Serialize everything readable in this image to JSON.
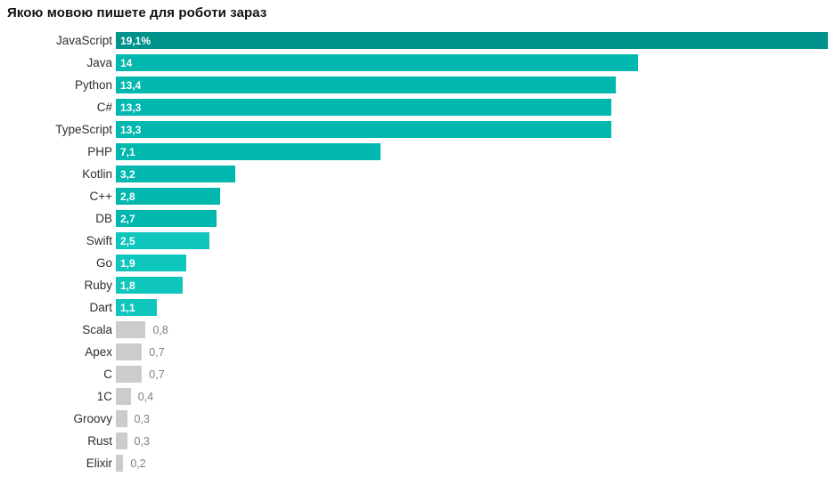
{
  "title": "Якою мовою пишете для роботи зараз",
  "chart_data": {
    "type": "bar",
    "orientation": "horizontal",
    "title": "Якою мовою пишете для роботи зараз",
    "xlabel": "",
    "ylabel": "",
    "xlim": [
      0,
      19.1
    ],
    "grid": false,
    "legend": "none",
    "categories": [
      "JavaScript",
      "Java",
      "Python",
      "C#",
      "TypeScript",
      "PHP",
      "Kotlin",
      "C++",
      "DB",
      "Swift",
      "Go",
      "Ruby",
      "Dart",
      "Scala",
      "Apex",
      "C",
      "1C",
      "Groovy",
      "Rust",
      "Elixir"
    ],
    "values": [
      19.1,
      14,
      13.4,
      13.3,
      13.3,
      7.1,
      3.2,
      2.8,
      2.7,
      2.5,
      1.9,
      1.8,
      1.1,
      0.8,
      0.7,
      0.7,
      0.4,
      0.3,
      0.3,
      0.2
    ],
    "value_labels": [
      "19,1%",
      "14",
      "13,4",
      "13,3",
      "13,3",
      "7,1",
      "3,2",
      "2,8",
      "2,7",
      "2,5",
      "1,9",
      "1,8",
      "1,1",
      "0,8",
      "0,7",
      "0,7",
      "0,4",
      "0,3",
      "0,3",
      "0,2"
    ],
    "value_label_inside": [
      true,
      true,
      true,
      true,
      true,
      true,
      true,
      true,
      true,
      true,
      true,
      true,
      true,
      false,
      false,
      false,
      false,
      false,
      false,
      false
    ],
    "bar_colors": [
      "#00938B",
      "#00B8AE",
      "#00B8AE",
      "#00B8AE",
      "#00B8AE",
      "#00B8AE",
      "#00B8AE",
      "#00B8AE",
      "#00B8AE",
      "#0FC6BD",
      "#0FC6BD",
      "#0FC6BD",
      "#0FC6BD",
      "#CCCCCC",
      "#CCCCCC",
      "#CCCCCC",
      "#CCCCCC",
      "#CCCCCC",
      "#CCCCCC",
      "#CCCCCC"
    ],
    "colors": {
      "highlight_bar": "#00938B",
      "teal_bar": "#00B8AE",
      "light_teal_bar": "#0FC6BD",
      "gray_bar": "#CCCCCC",
      "value_inside_text": "#FFFFFF",
      "value_outside_text": "#7F7F7F",
      "category_label_text": "#2E2E2E",
      "title_text": "#111111",
      "background": "#FFFFFF"
    }
  }
}
